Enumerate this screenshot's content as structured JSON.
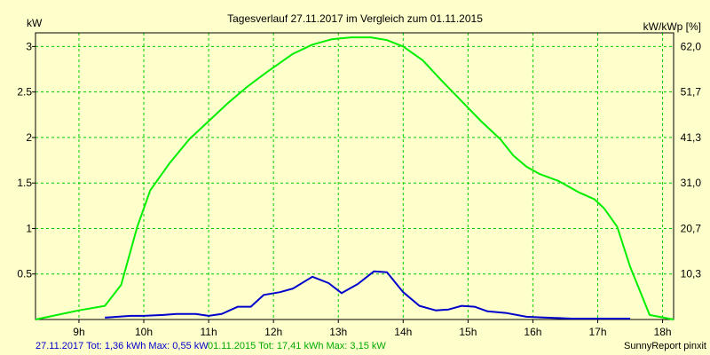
{
  "chart_data": {
    "type": "line",
    "title": "Tagesverlauf 27.11.2017 im Vergleich zum 01.11.2015",
    "ylabel_left": "kW",
    "ylabel_right": "kW/kWp [%]",
    "x_tick_labels": [
      "9h",
      "10h",
      "11h",
      "12h",
      "13h",
      "14h",
      "15h",
      "16h",
      "17h",
      "18h"
    ],
    "x_ticks_hours": [
      9,
      10,
      11,
      12,
      13,
      14,
      15,
      16,
      17,
      18
    ],
    "xlim": [
      8.33,
      18.17
    ],
    "ylim": [
      0,
      3.15
    ],
    "y_tick_values": [
      0.5,
      1,
      1.5,
      2,
      2.5,
      3
    ],
    "y_tick_labels": [
      "0.5",
      "1",
      "1.5",
      "2",
      "2.5",
      "3"
    ],
    "y2_tick_labels": [
      "10,3",
      "20,7",
      "31,0",
      "41,3",
      "51,7",
      "62,0"
    ],
    "grid": true,
    "colors": {
      "background": "#ffffcc",
      "grid": "#00cc00",
      "series_2017": "#0000cc",
      "series_2015": "#00ee00"
    },
    "series": [
      {
        "name": "01.11.2015",
        "color": "#00ee00",
        "x": [
          8.33,
          9.0,
          9.4,
          9.65,
          9.9,
          10.1,
          10.4,
          10.7,
          11.0,
          11.3,
          11.6,
          11.9,
          12.1,
          12.3,
          12.6,
          12.9,
          13.2,
          13.5,
          13.75,
          14.0,
          14.3,
          14.6,
          14.9,
          15.2,
          15.5,
          15.7,
          15.9,
          16.1,
          16.4,
          16.7,
          16.95,
          17.1,
          17.3,
          17.5,
          17.8,
          18.17
        ],
        "values": [
          0,
          0.1,
          0.15,
          0.38,
          1.02,
          1.42,
          1.72,
          1.98,
          2.18,
          2.38,
          2.56,
          2.72,
          2.82,
          2.92,
          3.02,
          3.08,
          3.1,
          3.1,
          3.07,
          3.0,
          2.85,
          2.62,
          2.4,
          2.18,
          1.98,
          1.8,
          1.68,
          1.6,
          1.52,
          1.4,
          1.32,
          1.22,
          1.02,
          0.58,
          0.05,
          0
        ]
      },
      {
        "name": "27.11.2017",
        "color": "#0000cc",
        "x": [
          9.4,
          9.6,
          9.8,
          10.0,
          10.3,
          10.5,
          10.8,
          11.0,
          11.2,
          11.45,
          11.65,
          11.85,
          12.1,
          12.3,
          12.6,
          12.85,
          13.05,
          13.3,
          13.55,
          13.75,
          14.0,
          14.25,
          14.5,
          14.7,
          14.9,
          15.1,
          15.3,
          15.6,
          15.9,
          16.2,
          16.6,
          17.0,
          17.5
        ],
        "values": [
          0.02,
          0.03,
          0.04,
          0.04,
          0.05,
          0.06,
          0.06,
          0.04,
          0.06,
          0.14,
          0.14,
          0.27,
          0.3,
          0.34,
          0.47,
          0.4,
          0.29,
          0.39,
          0.53,
          0.52,
          0.3,
          0.15,
          0.1,
          0.11,
          0.15,
          0.14,
          0.09,
          0.07,
          0.03,
          0.02,
          0.01,
          0.01,
          0.01
        ]
      }
    ]
  },
  "footer": {
    "legend_2017": "27.11.2017 Tot: 1,36 kWh Max: 0,55 kW",
    "legend_2015": "01.11.2015 Tot: 17,41 kWh Max: 3,15 kW",
    "brand": "SunnyReport pinxit"
  }
}
